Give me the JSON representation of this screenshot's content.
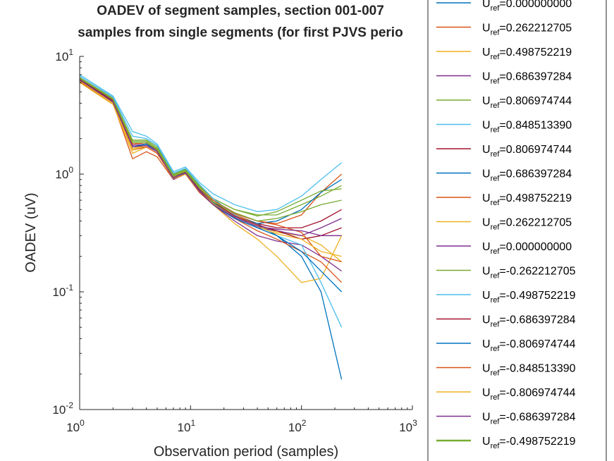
{
  "chart_data": {
    "type": "line",
    "title": "OADEV of segment samples, section 001-007",
    "subtitle": "samples from single segments (for first PJVS perio",
    "xlabel": "Observation period (samples)",
    "ylabel": "OADEV (uV)",
    "xscale": "log",
    "yscale": "log",
    "xlim": [
      1,
      1000
    ],
    "ylim": [
      0.01,
      10
    ],
    "xticks": [
      {
        "base": "10",
        "exp": "0"
      },
      {
        "base": "10",
        "exp": "1"
      },
      {
        "base": "10",
        "exp": "2"
      },
      {
        "base": "10",
        "exp": "3"
      }
    ],
    "yticks": [
      {
        "base": "10",
        "exp": "-2"
      },
      {
        "base": "10",
        "exp": "-1"
      },
      {
        "base": "10",
        "exp": "0"
      },
      {
        "base": "10",
        "exp": "1"
      }
    ],
    "legend_position": "right (outside)",
    "legend_prefix": "U",
    "legend_sub": "ref",
    "x": [
      1,
      2,
      3,
      4,
      5,
      7,
      9,
      12,
      16,
      25,
      40,
      60,
      100,
      150,
      230
    ],
    "series": [
      {
        "name": "=0.000000000",
        "color": "#0072BD",
        "values": [
          6.5,
          4.2,
          1.7,
          1.8,
          1.6,
          0.95,
          1.05,
          0.75,
          0.6,
          0.45,
          0.38,
          0.3,
          0.2,
          0.1,
          0.018
        ]
      },
      {
        "name": "=0.262212705",
        "color": "#D95319",
        "values": [
          6.2,
          4.0,
          1.35,
          1.55,
          1.4,
          0.9,
          1.0,
          0.72,
          0.6,
          0.47,
          0.4,
          0.38,
          0.45,
          0.7,
          1.0
        ]
      },
      {
        "name": "=0.498752219",
        "color": "#EDB120",
        "values": [
          6.0,
          3.9,
          1.5,
          1.7,
          1.5,
          0.92,
          1.0,
          0.72,
          0.55,
          0.38,
          0.28,
          0.2,
          0.12,
          0.13,
          0.3
        ]
      },
      {
        "name": "=0.686397284",
        "color": "#7E2F8E",
        "values": [
          6.4,
          4.1,
          1.6,
          1.75,
          1.55,
          0.9,
          1.02,
          0.7,
          0.55,
          0.4,
          0.3,
          0.27,
          0.25,
          0.2,
          0.15
        ]
      },
      {
        "name": "=0.806974744",
        "color": "#77AC30",
        "values": [
          6.6,
          4.3,
          1.9,
          1.9,
          1.65,
          0.98,
          1.08,
          0.78,
          0.62,
          0.5,
          0.45,
          0.45,
          0.55,
          0.65,
          0.8
        ]
      },
      {
        "name": "=0.848513390",
        "color": "#4DBEEE",
        "values": [
          7.0,
          4.6,
          2.3,
          2.1,
          1.8,
          1.05,
          1.15,
          0.85,
          0.68,
          0.55,
          0.48,
          0.5,
          0.65,
          0.9,
          1.25
        ]
      },
      {
        "name": "=0.806974744",
        "color": "#A2142F",
        "values": [
          6.5,
          4.3,
          1.8,
          1.85,
          1.6,
          0.95,
          1.05,
          0.75,
          0.58,
          0.45,
          0.38,
          0.35,
          0.35,
          0.4,
          0.5
        ]
      },
      {
        "name": "=0.686397284",
        "color": "#0072BD",
        "values": [
          6.3,
          4.2,
          1.7,
          1.8,
          1.6,
          0.95,
          1.03,
          0.73,
          0.57,
          0.44,
          0.38,
          0.4,
          0.5,
          0.7,
          0.9
        ]
      },
      {
        "name": "=0.498752219",
        "color": "#D95319",
        "values": [
          6.1,
          4.0,
          1.6,
          1.7,
          1.5,
          0.92,
          1.0,
          0.7,
          0.55,
          0.42,
          0.33,
          0.28,
          0.22,
          0.18,
          0.12
        ]
      },
      {
        "name": "=0.262212705",
        "color": "#EDB120",
        "values": [
          6.2,
          4.0,
          1.6,
          1.75,
          1.55,
          0.92,
          1.0,
          0.72,
          0.58,
          0.45,
          0.37,
          0.32,
          0.3,
          0.25,
          0.18
        ]
      },
      {
        "name": "=0.000000000",
        "color": "#7E2F8E",
        "values": [
          6.4,
          4.2,
          1.75,
          1.8,
          1.6,
          0.95,
          1.05,
          0.74,
          0.56,
          0.42,
          0.35,
          0.33,
          0.3,
          0.35,
          0.42
        ]
      },
      {
        "name": "=-0.262212705",
        "color": "#77AC30",
        "values": [
          6.6,
          4.4,
          1.95,
          1.95,
          1.7,
          1.0,
          1.1,
          0.8,
          0.62,
          0.5,
          0.44,
          0.48,
          0.6,
          0.72,
          0.75
        ]
      },
      {
        "name": "=-0.498752219",
        "color": "#4DBEEE",
        "values": [
          6.8,
          4.5,
          2.1,
          2.0,
          1.75,
          1.02,
          1.12,
          0.82,
          0.62,
          0.45,
          0.35,
          0.3,
          0.25,
          0.12,
          0.05
        ]
      },
      {
        "name": "=-0.686397284",
        "color": "#A2142F",
        "values": [
          6.4,
          4.2,
          1.8,
          1.85,
          1.6,
          0.95,
          1.05,
          0.75,
          0.58,
          0.44,
          0.37,
          0.33,
          0.28,
          0.3,
          0.35
        ]
      },
      {
        "name": "=-0.806974744",
        "color": "#0072BD",
        "values": [
          6.3,
          4.1,
          1.7,
          1.8,
          1.55,
          0.92,
          1.02,
          0.72,
          0.55,
          0.42,
          0.35,
          0.3,
          0.22,
          0.15,
          0.1
        ]
      },
      {
        "name": "=-0.848513390",
        "color": "#D95319",
        "values": [
          6.5,
          4.3,
          1.8,
          1.85,
          1.6,
          0.95,
          1.05,
          0.76,
          0.6,
          0.46,
          0.4,
          0.37,
          0.32,
          0.2,
          0.18
        ]
      },
      {
        "name": "=-0.806974744",
        "color": "#EDB120",
        "values": [
          6.2,
          4.1,
          1.65,
          1.75,
          1.55,
          0.92,
          1.0,
          0.72,
          0.56,
          0.43,
          0.36,
          0.31,
          0.28,
          0.22,
          0.2
        ]
      },
      {
        "name": "=-0.686397284",
        "color": "#7E2F8E",
        "values": [
          6.3,
          4.1,
          1.7,
          1.75,
          1.55,
          0.93,
          1.02,
          0.72,
          0.55,
          0.43,
          0.36,
          0.34,
          0.33,
          0.3,
          0.3
        ]
      },
      {
        "name": "=-0.498752219",
        "color": "#77AC30",
        "values": [
          6.5,
          4.3,
          1.85,
          1.85,
          1.62,
          0.96,
          1.06,
          0.76,
          0.58,
          0.47,
          0.4,
          0.42,
          0.48,
          0.55,
          0.6
        ]
      }
    ]
  }
}
